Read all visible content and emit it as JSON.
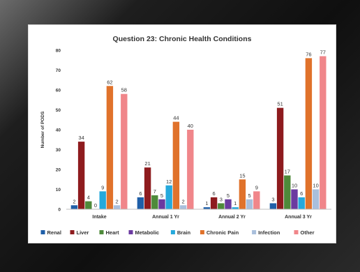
{
  "chart_data": {
    "type": "bar",
    "title": "Question 23: Chronic Health Conditions",
    "xlabel": "",
    "ylabel": "Number of PODS",
    "ylim": [
      0,
      80
    ],
    "yticks": [
      "0",
      "10",
      "20",
      "30",
      "40",
      "50",
      "60",
      "70",
      "80"
    ],
    "grid": false,
    "legend_position": "bottom",
    "categories": [
      "Intake",
      "Annual 1 Yr",
      "Annual 2 Yr",
      "Annual 3 Yr"
    ],
    "series": [
      {
        "name": "Renal",
        "color": "#1f5fa8",
        "values": [
          2,
          6,
          1,
          3
        ]
      },
      {
        "name": "Liver",
        "color": "#8e1b1e",
        "values": [
          34,
          21,
          6,
          51
        ]
      },
      {
        "name": "Heart",
        "color": "#4e8a3a",
        "values": [
          4,
          7,
          3,
          17
        ]
      },
      {
        "name": "Metabolic",
        "color": "#6b3aa0",
        "values": [
          0,
          5,
          5,
          10
        ]
      },
      {
        "name": "Brain",
        "color": "#25a9dc",
        "values": [
          9,
          12,
          1,
          6
        ]
      },
      {
        "name": "Chronic Pain",
        "color": "#e0722b",
        "values": [
          62,
          44,
          15,
          76
        ]
      },
      {
        "name": "Infection",
        "color": "#a9bfdc",
        "values": [
          2,
          2,
          5,
          10
        ]
      },
      {
        "name": "Other",
        "color": "#f0868a",
        "values": [
          58,
          40,
          9,
          77
        ]
      }
    ]
  }
}
